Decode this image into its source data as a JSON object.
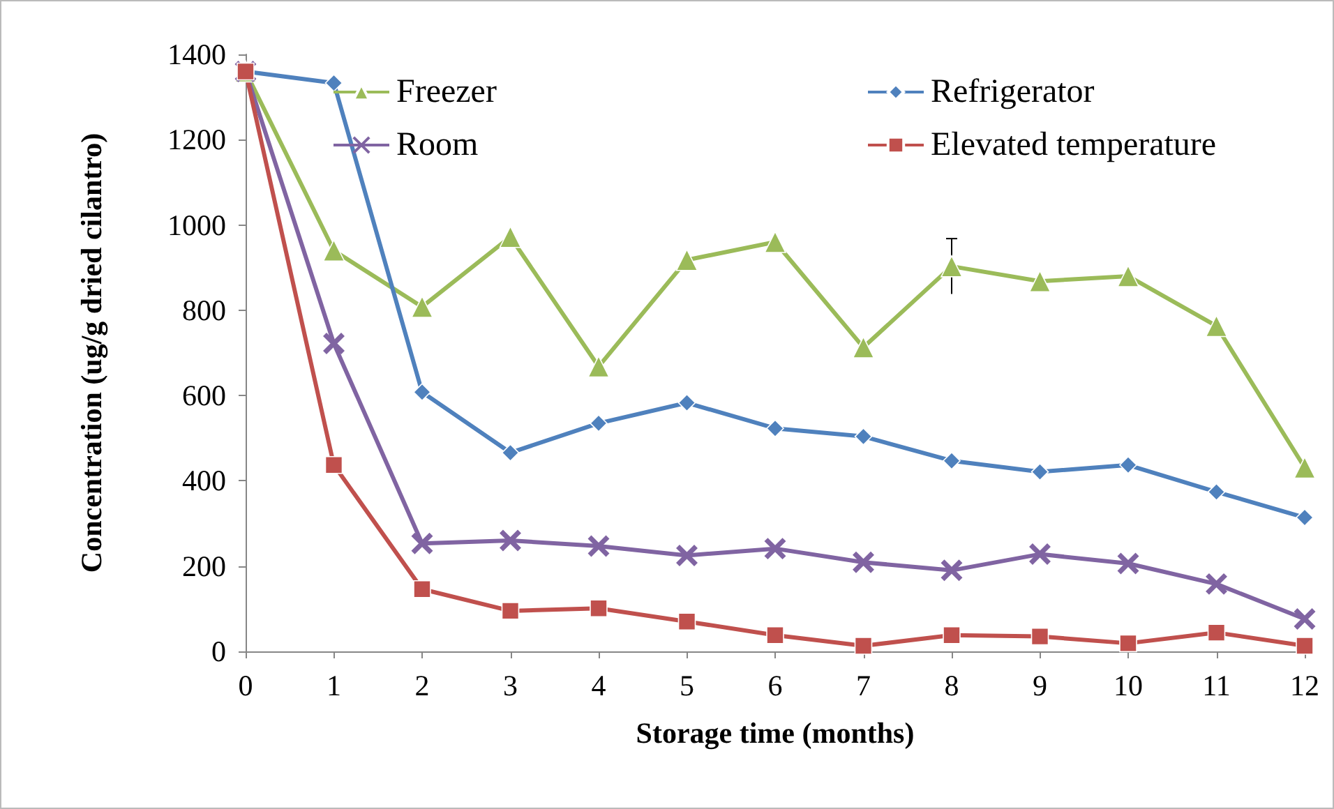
{
  "chart_data": {
    "type": "line",
    "xlabel": "Storage time (months)",
    "ylabel": "Concentration (ug/g dried cilantro)",
    "x": [
      0,
      1,
      2,
      3,
      4,
      5,
      6,
      7,
      8,
      9,
      10,
      11,
      12
    ],
    "xlim": [
      0,
      12
    ],
    "xticks": [
      0,
      1,
      2,
      3,
      4,
      5,
      6,
      7,
      8,
      9,
      10,
      11,
      12
    ],
    "ylim": [
      0,
      1400
    ],
    "yticks": [
      0,
      200,
      400,
      600,
      800,
      1000,
      1200,
      1400
    ],
    "grid": false,
    "legend": "top right",
    "line_style": "solid",
    "series": [
      {
        "name": "Freezer",
        "color": "#9bbb59",
        "marker": "triangle",
        "values": [
          1360,
          940,
          808,
          972,
          668,
          918,
          960,
          713,
          903,
          868,
          880,
          763,
          431
        ],
        "errors": [
          null,
          null,
          null,
          null,
          null,
          null,
          null,
          null,
          65,
          null,
          null,
          null,
          null
        ]
      },
      {
        "name": "Refrigerator",
        "color": "#4f81bd",
        "marker": "diamond",
        "values": [
          1360,
          1333,
          608,
          466,
          535,
          583,
          523,
          504,
          447,
          421,
          437,
          374,
          314
        ]
      },
      {
        "name": "Room",
        "color": "#8064a2",
        "marker": "cross",
        "values": [
          1360,
          722,
          253,
          260,
          247,
          225,
          241,
          209,
          190,
          228,
          206,
          158,
          76
        ]
      },
      {
        "name": "Elevated temperature",
        "color": "#c0504d",
        "marker": "square",
        "values": [
          1360,
          437,
          146,
          95,
          101,
          70,
          38,
          13,
          38,
          35,
          19,
          44,
          13
        ]
      }
    ]
  }
}
